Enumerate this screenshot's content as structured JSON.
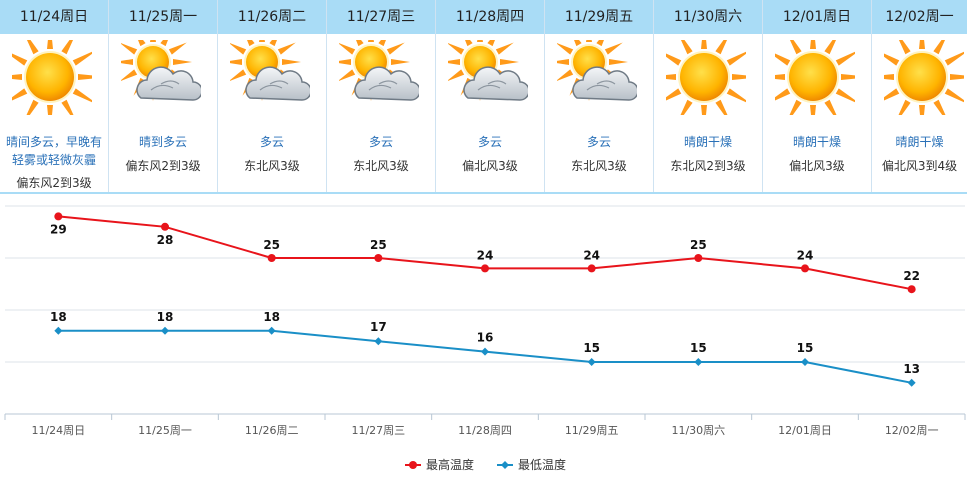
{
  "days": [
    {
      "label": "11/24周日",
      "cond": "晴间多云，早晚有轻雾或轻微灰霾",
      "wind": "偏东风2到3级",
      "icon": "sun"
    },
    {
      "label": "11/25周一",
      "cond": "晴到多云",
      "wind": "偏东风2到3级",
      "icon": "sun-cloud"
    },
    {
      "label": "11/26周二",
      "cond": "多云",
      "wind": "东北风3级",
      "icon": "sun-cloud"
    },
    {
      "label": "11/27周三",
      "cond": "多云",
      "wind": "东北风3级",
      "icon": "sun-cloud"
    },
    {
      "label": "11/28周四",
      "cond": "多云",
      "wind": "偏北风3级",
      "icon": "sun-cloud"
    },
    {
      "label": "11/29周五",
      "cond": "多云",
      "wind": "东北风3级",
      "icon": "sun-cloud"
    },
    {
      "label": "11/30周六",
      "cond": "晴朗干燥",
      "wind": "东北风2到3级",
      "icon": "sun"
    },
    {
      "label": "12/01周日",
      "cond": "晴朗干燥",
      "wind": "偏北风3级",
      "icon": "sun"
    },
    {
      "label": "12/02周一",
      "cond": "晴朗干燥",
      "wind": "偏北风3到4级",
      "icon": "sun"
    }
  ],
  "chart_data": {
    "type": "line",
    "categories": [
      "11/24周日",
      "11/25周一",
      "11/26周二",
      "11/27周三",
      "11/28周四",
      "11/29周五",
      "11/30周六",
      "12/01周日",
      "12/02周一"
    ],
    "series": [
      {
        "name": "最高温度",
        "values": [
          29,
          28,
          25,
          25,
          24,
          24,
          25,
          24,
          22
        ],
        "color": "#e8141b",
        "marker": "circle"
      },
      {
        "name": "最低温度",
        "values": [
          18,
          18,
          18,
          17,
          16,
          15,
          15,
          15,
          13
        ],
        "color": "#1a8fc7",
        "marker": "diamond"
      }
    ],
    "ylim": [
      10,
      30
    ],
    "grid": true,
    "legend": "bottom-center"
  }
}
